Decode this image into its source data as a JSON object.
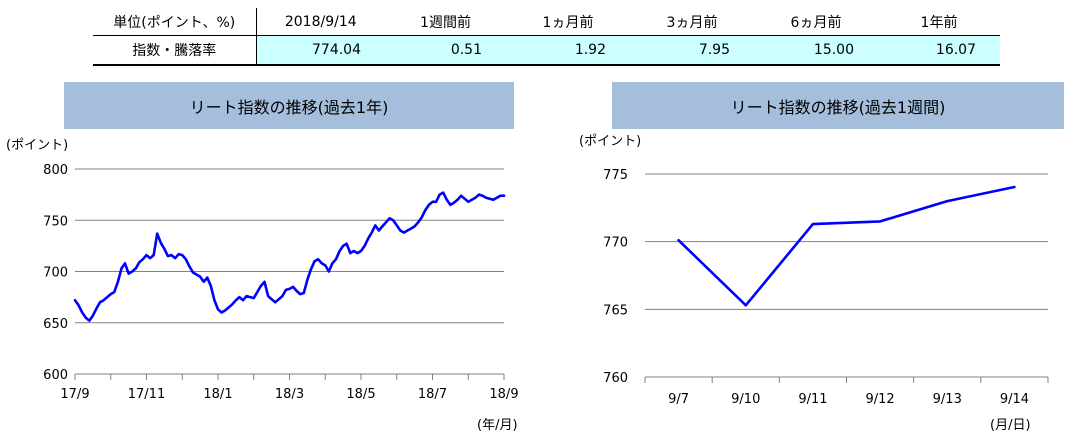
{
  "table": {
    "headers": [
      "単位(ポイント、%)",
      "2018/9/14",
      "1週間前",
      "1ヵ月前",
      "3ヵ月前",
      "6ヵ月前",
      "1年前"
    ],
    "row_label": "指数・騰落率",
    "values": [
      "774.04",
      "0.51",
      "1.92",
      "7.95",
      "15.00",
      "16.07"
    ],
    "value_bg": "#ccffff"
  },
  "colors": {
    "title_bg": "#a4bedc",
    "line": "#0000ff",
    "grid": "#808080"
  },
  "chart_data": [
    {
      "type": "line",
      "title": "リート指数の推移(過去1年)",
      "ylabel": "(ポイント)",
      "xlabel": "(年/月)",
      "ylim": [
        600,
        800
      ],
      "yticks": [
        "600",
        "650",
        "700",
        "750",
        "800"
      ],
      "x_tick_labels": [
        "17/9",
        "17/11",
        "18/1",
        "18/3",
        "18/5",
        "18/7",
        "18/9"
      ],
      "x_tick_index": [
        0,
        2,
        4,
        6,
        8,
        10,
        12
      ],
      "series": [
        {
          "x": [
            0.0,
            0.1,
            0.2,
            0.3,
            0.4,
            0.5,
            0.6,
            0.7,
            0.8,
            0.9,
            1.0,
            1.1,
            1.2,
            1.3,
            1.4,
            1.5,
            1.6,
            1.7,
            1.8,
            1.9,
            2.0,
            2.1,
            2.2,
            2.3,
            2.4,
            2.5,
            2.6,
            2.7,
            2.8,
            2.9,
            3.0,
            3.1,
            3.2,
            3.3,
            3.4,
            3.5,
            3.6,
            3.7,
            3.8,
            3.9,
            4.0,
            4.1,
            4.2,
            4.3,
            4.4,
            4.5,
            4.6,
            4.7,
            4.8,
            4.9,
            5.0,
            5.1,
            5.2,
            5.3,
            5.4,
            5.5,
            5.6,
            5.7,
            5.8,
            5.9,
            6.0,
            6.1,
            6.2,
            6.3,
            6.4,
            6.5,
            6.6,
            6.7,
            6.8,
            6.9,
            7.0,
            7.1,
            7.2,
            7.3,
            7.4,
            7.5,
            7.6,
            7.7,
            7.8,
            7.9,
            8.0,
            8.1,
            8.2,
            8.3,
            8.4,
            8.5,
            8.6,
            8.7,
            8.8,
            8.9,
            9.0,
            9.1,
            9.2,
            9.3,
            9.4,
            9.5,
            9.6,
            9.7,
            9.8,
            9.9,
            10.0,
            10.1,
            10.2,
            10.3,
            10.4,
            10.5,
            10.6,
            10.7,
            10.8,
            10.9,
            11.0,
            11.1,
            11.2,
            11.3,
            11.4,
            11.5,
            11.6,
            11.7,
            11.8,
            11.9,
            12.0
          ],
          "values": [
            672,
            667,
            660,
            655,
            652,
            657,
            664,
            670,
            672,
            675,
            678,
            680,
            690,
            703,
            708,
            698,
            700,
            703,
            709,
            712,
            716,
            713,
            716,
            737,
            728,
            722,
            715,
            716,
            713,
            717,
            716,
            712,
            705,
            699,
            697,
            695,
            690,
            694,
            686,
            672,
            663,
            660,
            662,
            665,
            668,
            672,
            675,
            672,
            676,
            675,
            674,
            680,
            686,
            690,
            676,
            673,
            670,
            673,
            676,
            682,
            683,
            685,
            681,
            678,
            679,
            692,
            702,
            710,
            712,
            708,
            706,
            700,
            708,
            712,
            720,
            725,
            727,
            718,
            720,
            718,
            720,
            725,
            732,
            738,
            745,
            740,
            744,
            748,
            752,
            750,
            745,
            740,
            738,
            740,
            742,
            744,
            748,
            753,
            760,
            765,
            768,
            768,
            775,
            777,
            770,
            765,
            767,
            770,
            774,
            771,
            768,
            770,
            772,
            775,
            774,
            772,
            771,
            770,
            772,
            774,
            774
          ]
        }
      ]
    },
    {
      "type": "line",
      "title": "リート指数の推移(過去1週間)",
      "ylabel": "(ポイント)",
      "xlabel": "(月/日)",
      "ylim": [
        760,
        775
      ],
      "yticks": [
        "760",
        "765",
        "770",
        "775"
      ],
      "categories": [
        "9/7",
        "9/10",
        "9/11",
        "9/12",
        "9/13",
        "9/14"
      ],
      "series": [
        {
          "values": [
            770.1,
            765.3,
            771.3,
            771.5,
            773.0,
            774.04
          ]
        }
      ]
    }
  ]
}
